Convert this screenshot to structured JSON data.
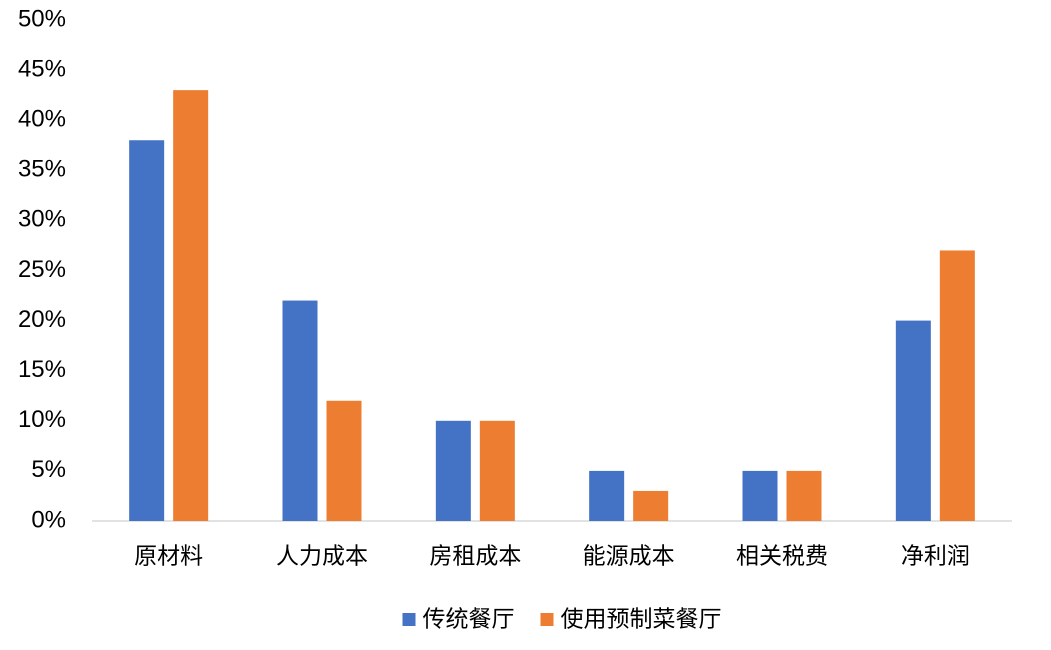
{
  "chart_data": {
    "type": "bar",
    "categories": [
      "原材料",
      "人力成本",
      "房租成本",
      "能源成本",
      "相关税费",
      "净利润"
    ],
    "series": [
      {
        "name": "传统餐厅",
        "color": "#4472c4",
        "values": [
          38,
          22,
          10,
          5,
          5,
          20
        ]
      },
      {
        "name": "使用预制菜餐厅",
        "color": "#ed7d31",
        "values": [
          43,
          12,
          10,
          3,
          5,
          27
        ]
      }
    ],
    "ylim": [
      0,
      50
    ],
    "yticks": [
      {
        "value": 0,
        "label": "0%"
      },
      {
        "value": 5,
        "label": "5%"
      },
      {
        "value": 10,
        "label": "10%"
      },
      {
        "value": 15,
        "label": "15%"
      },
      {
        "value": 20,
        "label": "20%"
      },
      {
        "value": 25,
        "label": "25%"
      },
      {
        "value": 30,
        "label": "30%"
      },
      {
        "value": 35,
        "label": "35%"
      },
      {
        "value": 40,
        "label": "40%"
      },
      {
        "value": 45,
        "label": "45%"
      },
      {
        "value": 50,
        "label": "50%"
      }
    ],
    "grid": false,
    "legend": "bottom"
  }
}
